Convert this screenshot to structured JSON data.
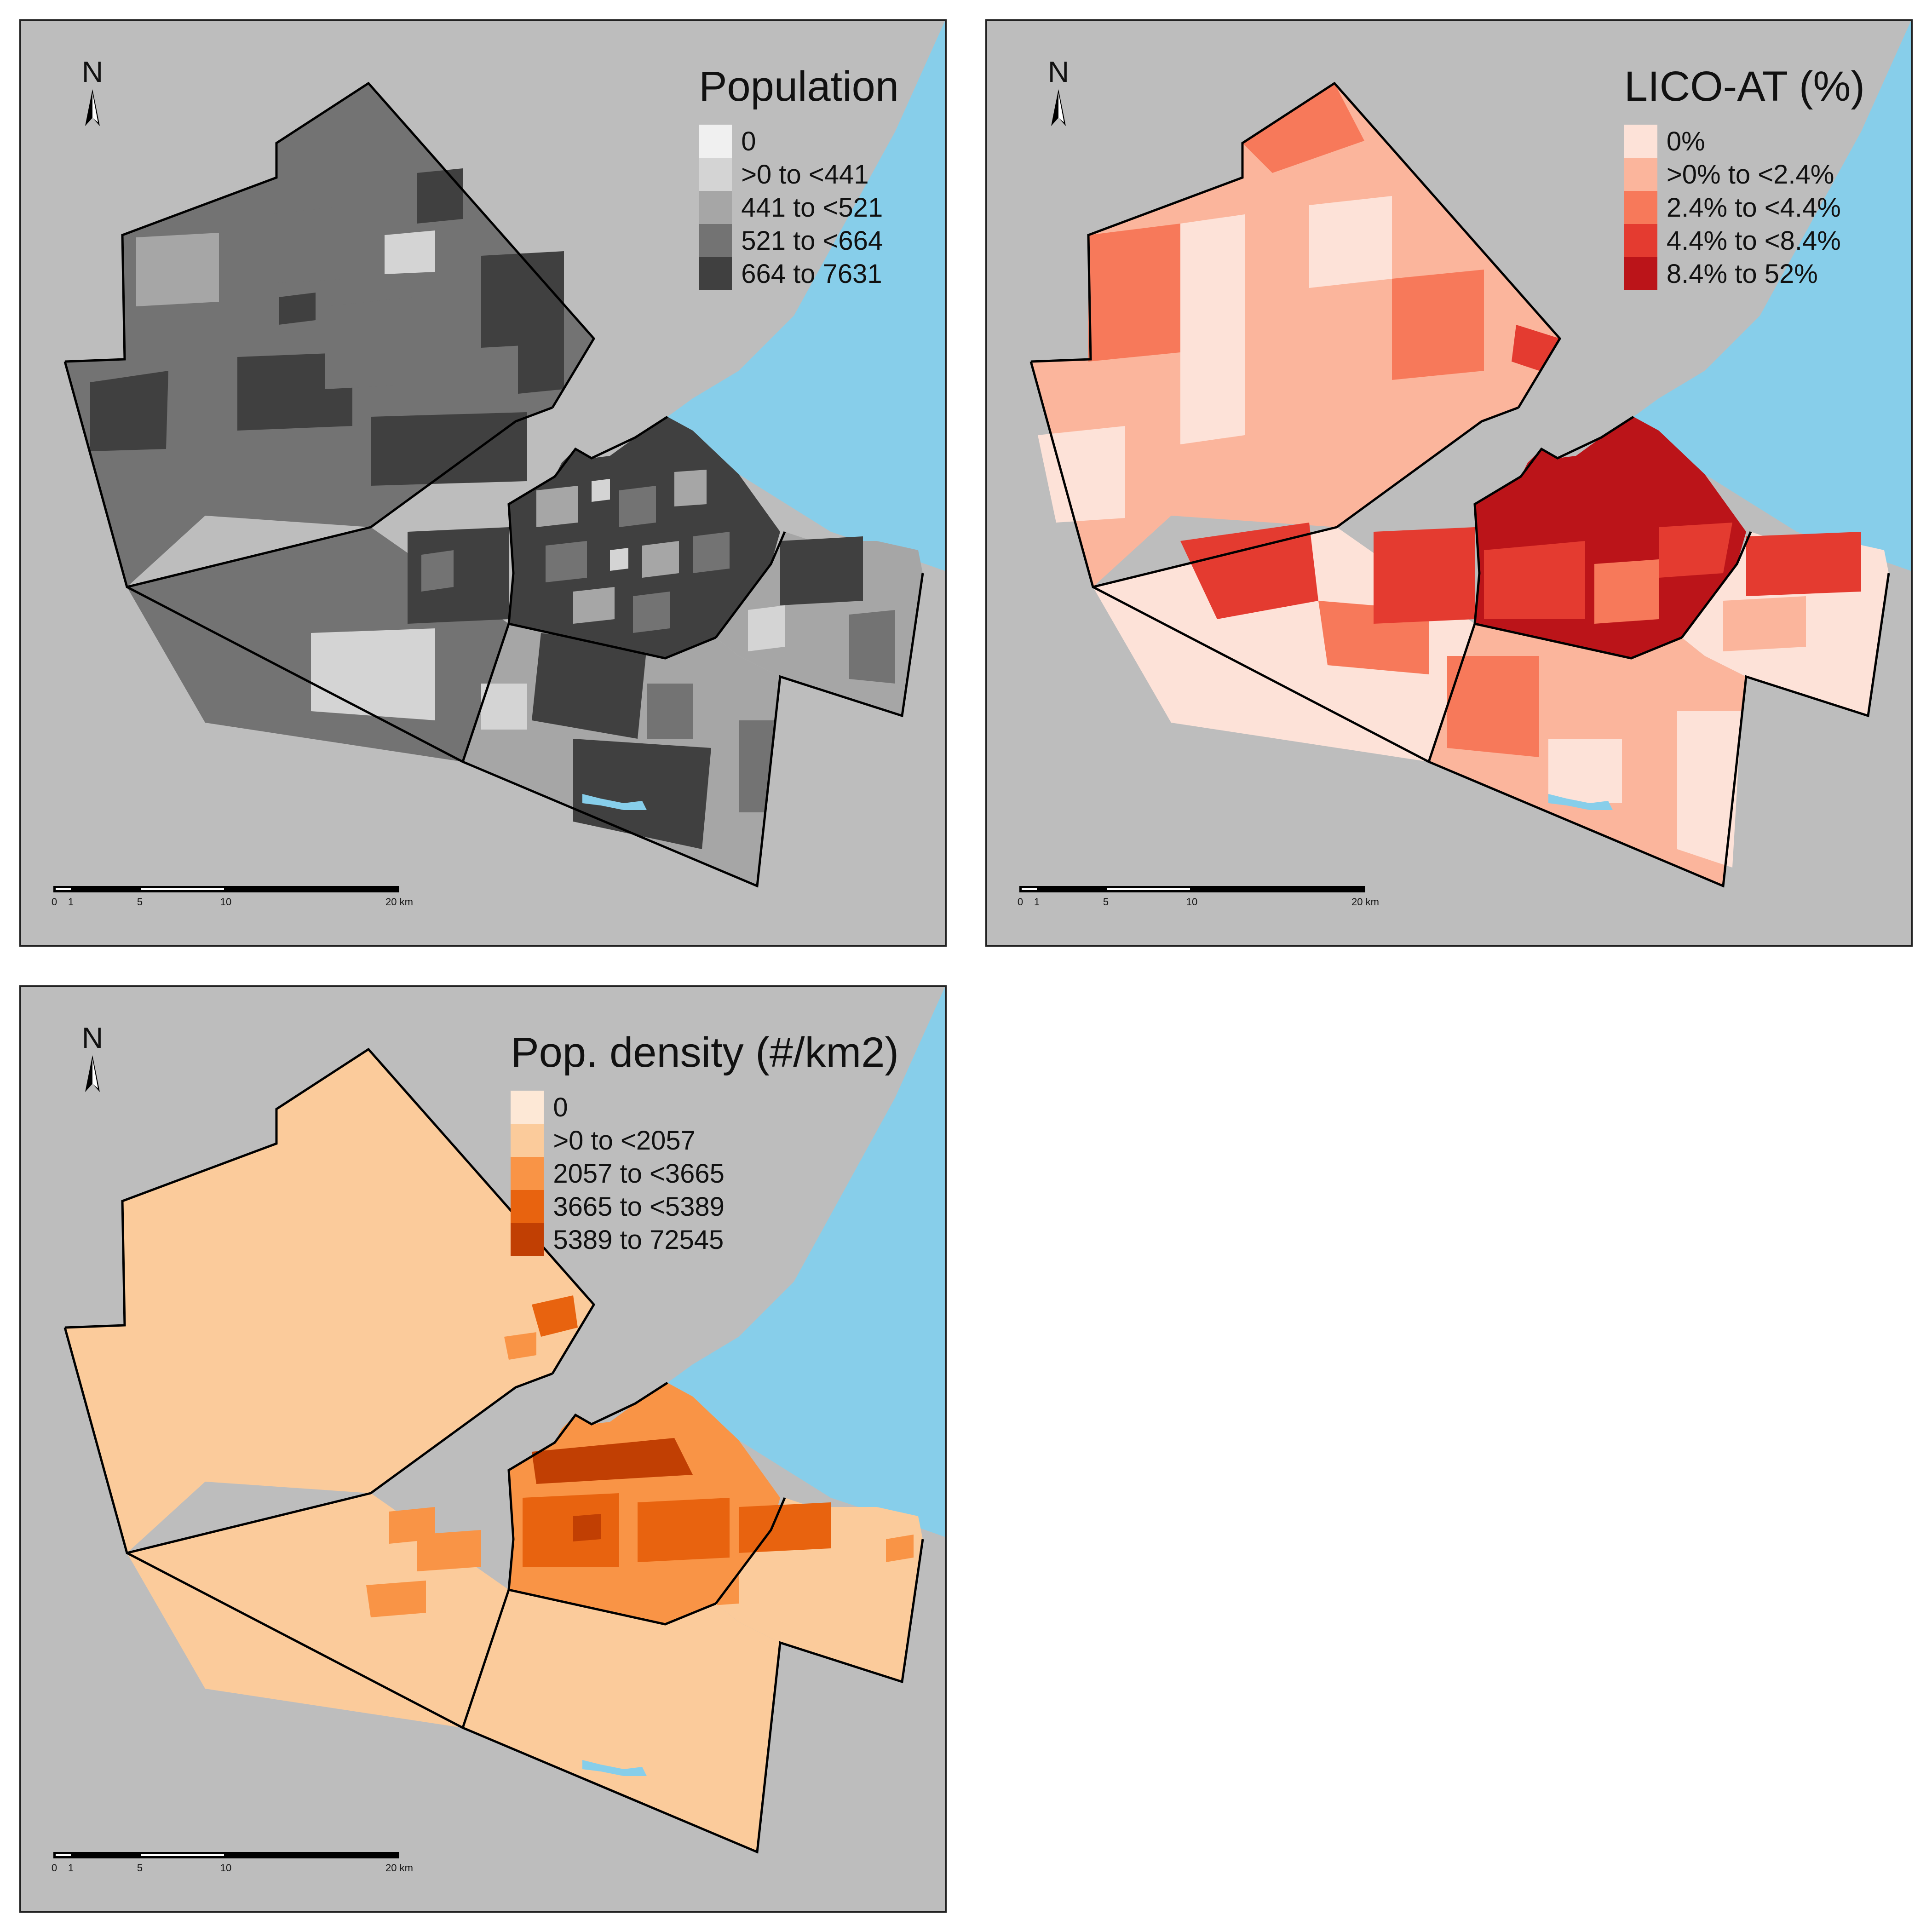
{
  "panels": {
    "population": {
      "legend_title": "Population",
      "classes": [
        {
          "label": "0",
          "color": "#f0f0f0"
        },
        {
          "label": ">0 to <441",
          "color": "#d4d4d4"
        },
        {
          "label": "441 to <521",
          "color": "#a6a6a6"
        },
        {
          "label": "521 to <664",
          "color": "#737373"
        },
        {
          "label": "664 to 7631",
          "color": "#404040"
        }
      ]
    },
    "lico": {
      "legend_title": "LICO-AT (%)",
      "classes": [
        {
          "label": "0%",
          "color": "#fde2d8"
        },
        {
          "label": ">0% to <2.4%",
          "color": "#fbb59c"
        },
        {
          "label": "2.4% to <4.4%",
          "color": "#f7795a"
        },
        {
          "label": "4.4% to <8.4%",
          "color": "#e43b30"
        },
        {
          "label": "8.4% to 52%",
          "color": "#bb1419"
        }
      ]
    },
    "density": {
      "legend_title": "Pop. density (#/km2)",
      "classes": [
        {
          "label": "0",
          "color": "#fde8d6"
        },
        {
          "label": ">0 to <2057",
          "color": "#fbcb9b"
        },
        {
          "label": "2057 to <3665",
          "color": "#f99446"
        },
        {
          "label": "3665 to <5389",
          "color": "#e8630f"
        },
        {
          "label": "5389 to 72545",
          "color": "#c13f03"
        }
      ]
    }
  },
  "map": {
    "north_label": "N",
    "scale_ticks": [
      "0",
      "1",
      "5",
      "10",
      "20 km"
    ],
    "water_color": "#87ceea",
    "background_color": "#bdbdbd"
  }
}
